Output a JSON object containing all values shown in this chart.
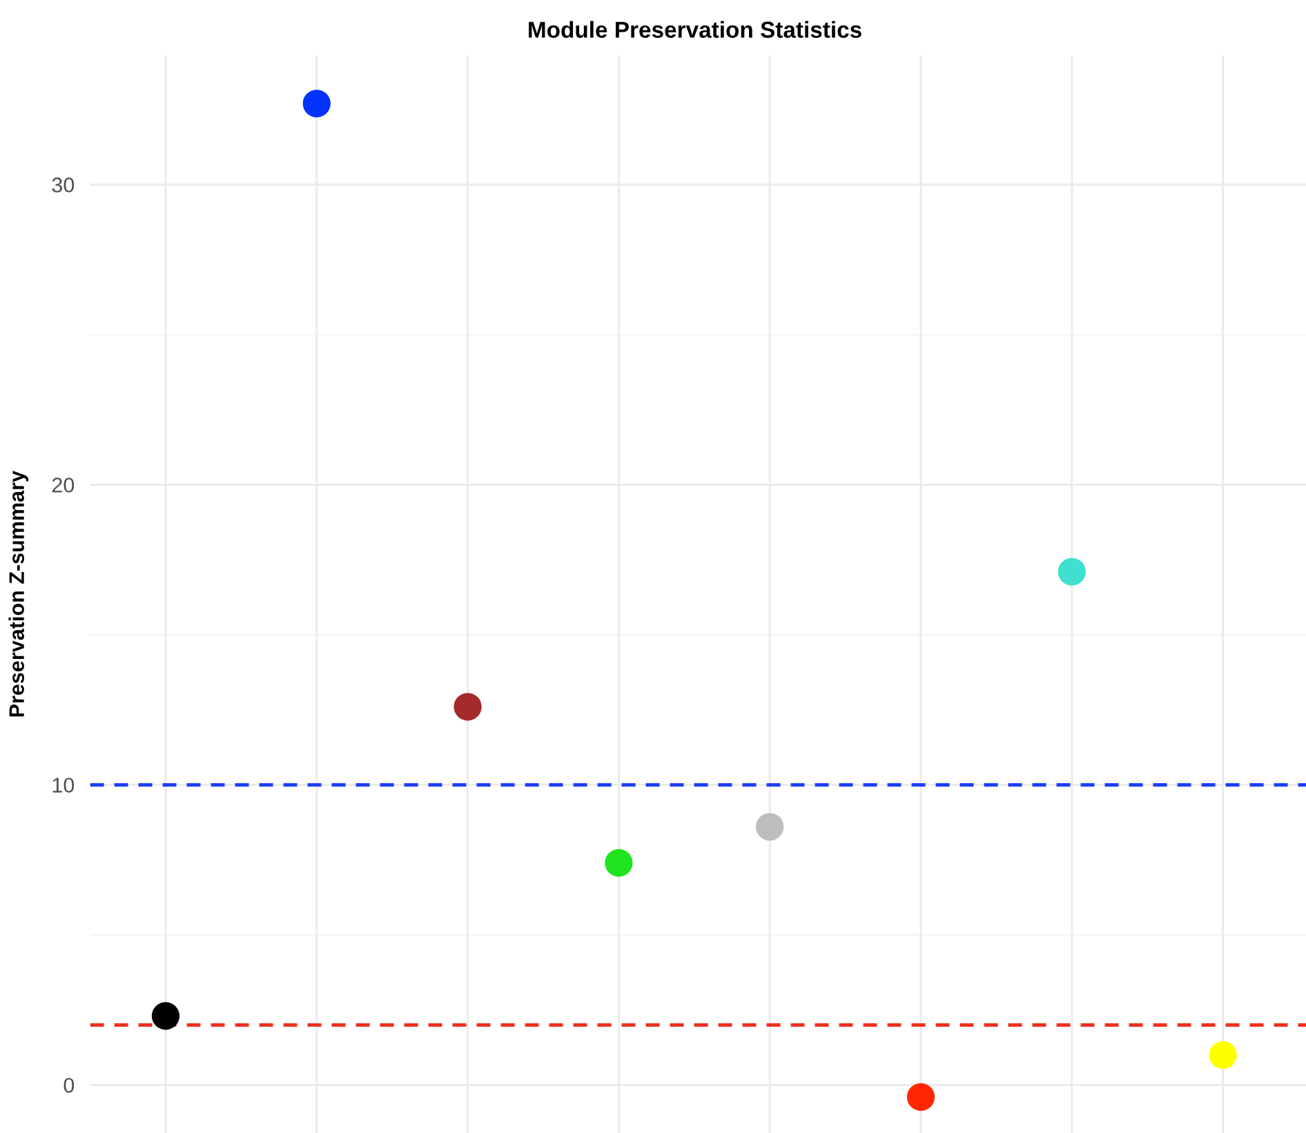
{
  "chart_data": {
    "type": "scatter",
    "title": "Module Preservation Statistics",
    "ylabel": "Preservation Z-summary",
    "categories": [
      null,
      null,
      null,
      null,
      null,
      null,
      null,
      null
    ],
    "series": [
      {
        "values": [
          2.3,
          32.7,
          12.6,
          7.4,
          8.6,
          -0.4,
          17.1,
          1.0
        ],
        "colors": [
          "#000000",
          "#0433ff",
          "#a52a2a",
          "#1ee51e",
          "#bebebe",
          "#ff2600",
          "#40e0d0",
          "#ffff00"
        ]
      }
    ],
    "ylim": [
      -1.6,
      34.3
    ],
    "yticks": [
      0,
      {
        "value": 5,
        "label": null
      },
      10,
      {
        "value": 15,
        "label": null
      },
      20,
      {
        "value": 25,
        "label": null
      },
      30
    ],
    "ref_lines": [
      {
        "axis": "y",
        "value": 10,
        "color": "#1f3fff",
        "line_style": "dashed"
      },
      {
        "axis": "y",
        "value": 2,
        "color": "#f0311f",
        "line_style": "dashed"
      }
    ],
    "grid": true,
    "legend": false,
    "marker": "circle"
  }
}
